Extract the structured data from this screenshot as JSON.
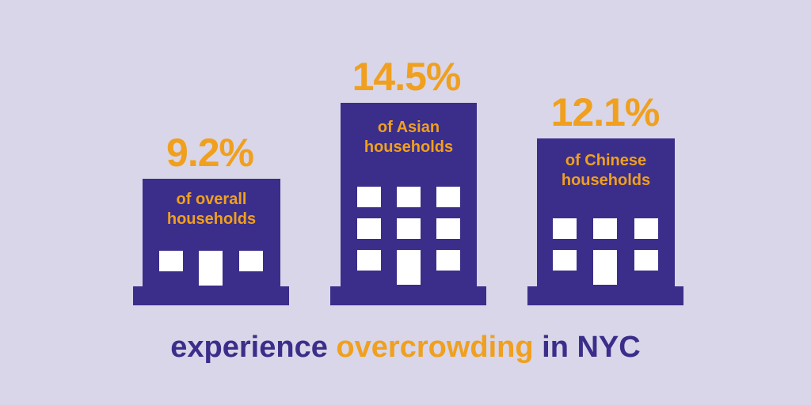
{
  "colors": {
    "background": "#d8d6e8",
    "building": "#3b2e8a",
    "accent": "#f0a01e",
    "window": "#ffffff"
  },
  "stats": [
    {
      "value": "9.2%",
      "label_line1": "of overall",
      "label_line2": "households"
    },
    {
      "value": "14.5%",
      "label_line1": "of Asian",
      "label_line2": "households"
    },
    {
      "value": "12.1%",
      "label_line1": "of Chinese",
      "label_line2": "households"
    }
  ],
  "tagline": {
    "before": "experience",
    "highlight": "overcrowding",
    "after": "in NYC"
  }
}
